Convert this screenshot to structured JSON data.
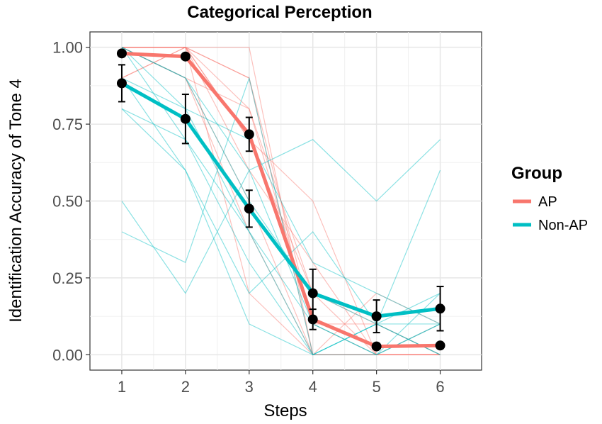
{
  "chart_data": {
    "type": "line",
    "title": "Categorical Perception",
    "xlabel": "Steps",
    "ylabel": "Identification Accuracy of Tone 4",
    "x": [
      1,
      2,
      3,
      4,
      5,
      6
    ],
    "xlim": [
      0.5,
      6.65
    ],
    "ylim": [
      -0.05,
      1.05
    ],
    "x_ticks": [
      "1",
      "2",
      "3",
      "4",
      "5",
      "6"
    ],
    "y_ticks": [
      "0.00",
      "0.25",
      "0.50",
      "0.75",
      "1.00"
    ],
    "y_tick_values": [
      0,
      0.25,
      0.5,
      0.75,
      1.0
    ],
    "grid": true,
    "legend_title": "Group",
    "legend_position": "right",
    "series": [
      {
        "name": "AP",
        "color": "#F8766D",
        "values": [
          0.98,
          0.97,
          0.717,
          0.115,
          0.027,
          0.03
        ],
        "error_low": [
          0.98,
          0.97,
          0.662,
          0.082,
          0.022,
          0.028
        ],
        "error_high": [
          0.98,
          0.97,
          0.772,
          0.148,
          0.032,
          0.032
        ]
      },
      {
        "name": "Non-AP",
        "color": "#00BFC4",
        "values": [
          0.883,
          0.767,
          0.475,
          0.2,
          0.125,
          0.15
        ],
        "error_low": [
          0.823,
          0.687,
          0.415,
          0.122,
          0.072,
          0.078
        ],
        "error_high": [
          0.943,
          0.847,
          0.535,
          0.278,
          0.178,
          0.222
        ]
      }
    ],
    "individual_lines": [
      {
        "group": "AP",
        "values": [
          1.0,
          1.0,
          1.0,
          0.0,
          0.0,
          0.0
        ]
      },
      {
        "group": "AP",
        "values": [
          1.0,
          1.0,
          0.8,
          0.1,
          0.0,
          0.0
        ]
      },
      {
        "group": "AP",
        "values": [
          1.0,
          1.0,
          0.7,
          0.2,
          0.0,
          0.0
        ]
      },
      {
        "group": "AP",
        "values": [
          0.9,
          1.0,
          0.9,
          0.1,
          0.1,
          0.0
        ]
      },
      {
        "group": "AP",
        "values": [
          1.0,
          0.9,
          0.5,
          0.0,
          0.0,
          0.1
        ]
      },
      {
        "group": "AP",
        "values": [
          1.0,
          1.0,
          0.6,
          0.3,
          0.0,
          0.0
        ]
      },
      {
        "group": "AP",
        "values": [
          1.0,
          0.9,
          0.8,
          0.2,
          0.1,
          0.0
        ]
      },
      {
        "group": "AP",
        "values": [
          1.0,
          1.0,
          0.2,
          0.0,
          0.0,
          0.0
        ]
      },
      {
        "group": "AP",
        "values": [
          0.9,
          1.0,
          0.7,
          0.5,
          0.0,
          0.0
        ]
      },
      {
        "group": "AP",
        "values": [
          1.0,
          1.0,
          0.9,
          0.0,
          0.2,
          0.1
        ]
      },
      {
        "group": "AP",
        "values": [
          1.0,
          0.9,
          0.4,
          0.0,
          0.0,
          0.0
        ]
      },
      {
        "group": "Non-AP",
        "values": [
          0.4,
          0.3,
          0.9,
          0.0,
          0.1,
          0.0
        ]
      },
      {
        "group": "Non-AP",
        "values": [
          0.5,
          0.2,
          0.6,
          0.7,
          0.5,
          0.7
        ]
      },
      {
        "group": "Non-AP",
        "values": [
          0.8,
          0.6,
          0.1,
          0.0,
          0.0,
          0.2
        ]
      },
      {
        "group": "Non-AP",
        "values": [
          1.0,
          0.7,
          0.3,
          0.0,
          0.1,
          0.6
        ]
      },
      {
        "group": "Non-AP",
        "values": [
          0.9,
          0.8,
          0.4,
          0.1,
          0.0,
          0.1
        ]
      },
      {
        "group": "Non-AP",
        "values": [
          1.0,
          0.9,
          0.5,
          0.2,
          0.1,
          0.0
        ]
      },
      {
        "group": "Non-AP",
        "values": [
          0.9,
          0.6,
          0.2,
          0.4,
          0.1,
          0.1
        ]
      },
      {
        "group": "Non-AP",
        "values": [
          1.0,
          0.8,
          0.7,
          0.3,
          0.2,
          0.1
        ]
      },
      {
        "group": "Non-AP",
        "values": [
          0.8,
          0.7,
          0.4,
          0.0,
          0.1,
          0.2
        ]
      },
      {
        "group": "Non-AP",
        "values": [
          1.0,
          0.9,
          0.6,
          0.1,
          0.0,
          0.1
        ]
      }
    ]
  }
}
